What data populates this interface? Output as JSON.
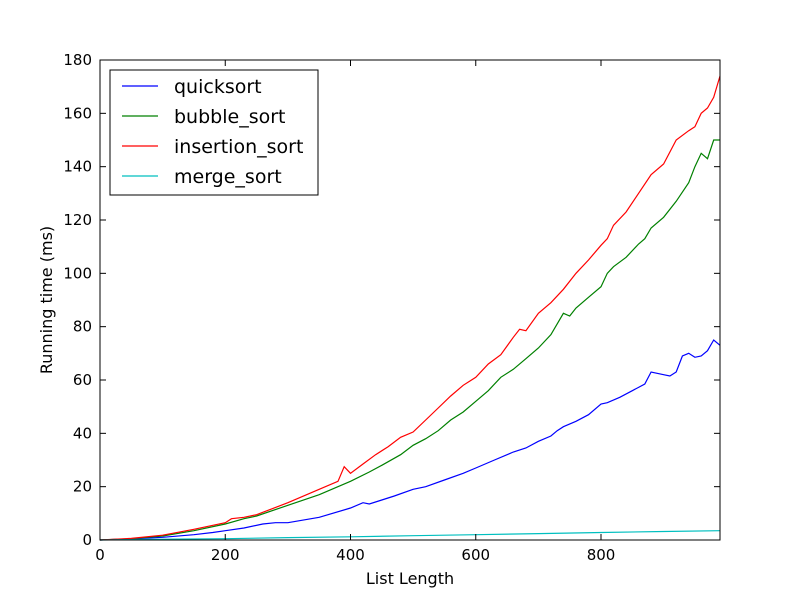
{
  "chart_data": {
    "type": "line",
    "title": "",
    "xlabel": "List Length",
    "ylabel": "Running time (ms)",
    "xlim": [
      0,
      990
    ],
    "ylim": [
      0,
      180
    ],
    "xticks": [
      0,
      200,
      400,
      600,
      800
    ],
    "yticks": [
      0,
      20,
      40,
      60,
      80,
      100,
      120,
      140,
      160,
      180
    ],
    "grid": false,
    "legend_position": "top-left",
    "series": [
      {
        "name": "quicksort",
        "color": "#0000ff",
        "x": [
          0,
          50,
          100,
          150,
          180,
          200,
          230,
          260,
          280,
          300,
          350,
          400,
          420,
          430,
          450,
          470,
          500,
          520,
          550,
          580,
          600,
          630,
          650,
          660,
          680,
          700,
          720,
          730,
          740,
          760,
          780,
          800,
          810,
          830,
          850,
          870,
          880,
          900,
          910,
          920,
          930,
          940,
          950,
          960,
          970,
          980,
          990
        ],
        "y": [
          0,
          0.4,
          1,
          2,
          2.8,
          3.5,
          4.5,
          6,
          6.5,
          6.5,
          8.5,
          12,
          14,
          13.5,
          15,
          16.5,
          19,
          20,
          22.5,
          25,
          27,
          30,
          32,
          33,
          34.5,
          37,
          39,
          41,
          42.5,
          44.5,
          47,
          51,
          51.5,
          53.5,
          56,
          58.5,
          63,
          62,
          61.5,
          63,
          69,
          70,
          68.5,
          69,
          71,
          75,
          73
        ]
      },
      {
        "name": "bubble_sort",
        "color": "#008000",
        "x": [
          0,
          50,
          100,
          150,
          200,
          230,
          250,
          300,
          350,
          400,
          430,
          450,
          480,
          500,
          520,
          540,
          560,
          580,
          600,
          620,
          640,
          660,
          680,
          700,
          720,
          740,
          750,
          760,
          780,
          800,
          810,
          820,
          840,
          860,
          870,
          880,
          900,
          920,
          940,
          950,
          960,
          970,
          980,
          990
        ],
        "y": [
          0,
          0.5,
          1.5,
          3.5,
          6,
          8,
          9,
          13,
          17,
          22,
          25.5,
          28,
          32,
          35.5,
          38,
          41,
          45,
          48,
          52,
          56,
          61,
          64,
          68,
          72,
          77,
          85,
          84,
          87,
          91,
          95,
          100,
          102.5,
          106,
          111,
          113,
          117,
          121,
          127,
          134,
          140,
          145,
          143,
          150,
          150
        ]
      },
      {
        "name": "insertion_sort",
        "color": "#ff0000",
        "x": [
          0,
          50,
          100,
          150,
          200,
          210,
          230,
          250,
          300,
          350,
          380,
          390,
          400,
          420,
          440,
          460,
          480,
          500,
          520,
          540,
          560,
          580,
          600,
          620,
          640,
          660,
          670,
          680,
          700,
          720,
          740,
          760,
          780,
          800,
          810,
          820,
          840,
          860,
          880,
          900,
          920,
          940,
          950,
          960,
          970,
          980,
          990
        ],
        "y": [
          0,
          0.6,
          1.8,
          4,
          6.5,
          8,
          8.5,
          9.5,
          14,
          19,
          22,
          27.5,
          25,
          28.5,
          32,
          35,
          38.5,
          40.5,
          45,
          49.5,
          54,
          58,
          61,
          66,
          69.5,
          76,
          79,
          78.5,
          85,
          89,
          94,
          100,
          105,
          110.5,
          113,
          118,
          123,
          130,
          137,
          141,
          150,
          153.5,
          155,
          160,
          162,
          166,
          174
        ]
      },
      {
        "name": "merge_sort",
        "color": "#00bfbf",
        "x": [
          0,
          100,
          200,
          300,
          400,
          500,
          600,
          700,
          800,
          900,
          990
        ],
        "y": [
          0,
          0.3,
          0.5,
          0.9,
          1.2,
          1.6,
          2.0,
          2.4,
          2.8,
          3.2,
          3.5
        ]
      }
    ]
  }
}
